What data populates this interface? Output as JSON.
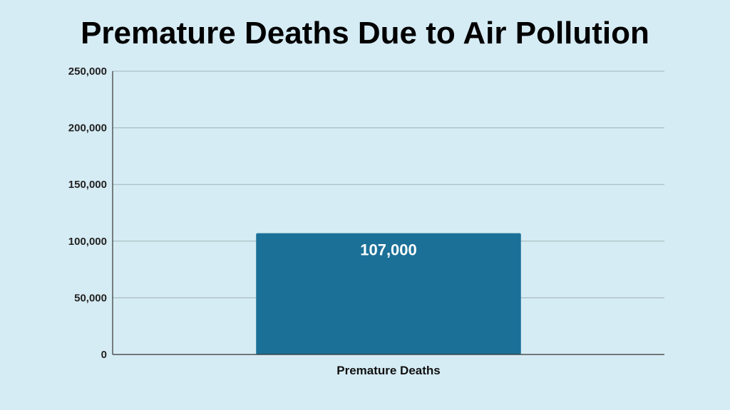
{
  "chart_data": {
    "type": "bar",
    "title": "Premature Deaths Due to Air Pollution",
    "categories": [
      "Premature Deaths"
    ],
    "values": [
      107000
    ],
    "data_labels": [
      "107,000"
    ],
    "y_ticks": [
      0,
      50000,
      100000,
      150000,
      200000,
      250000
    ],
    "y_tick_labels": [
      "0",
      "50,000",
      "100,000",
      "150,000",
      "200,000",
      "250,000"
    ],
    "ylim": [
      0,
      250000
    ],
    "grid": true,
    "legend": "none",
    "xlabel": "",
    "ylabel": "",
    "colors": {
      "bar": "#1b7098",
      "background": "#d6ecf4"
    }
  }
}
